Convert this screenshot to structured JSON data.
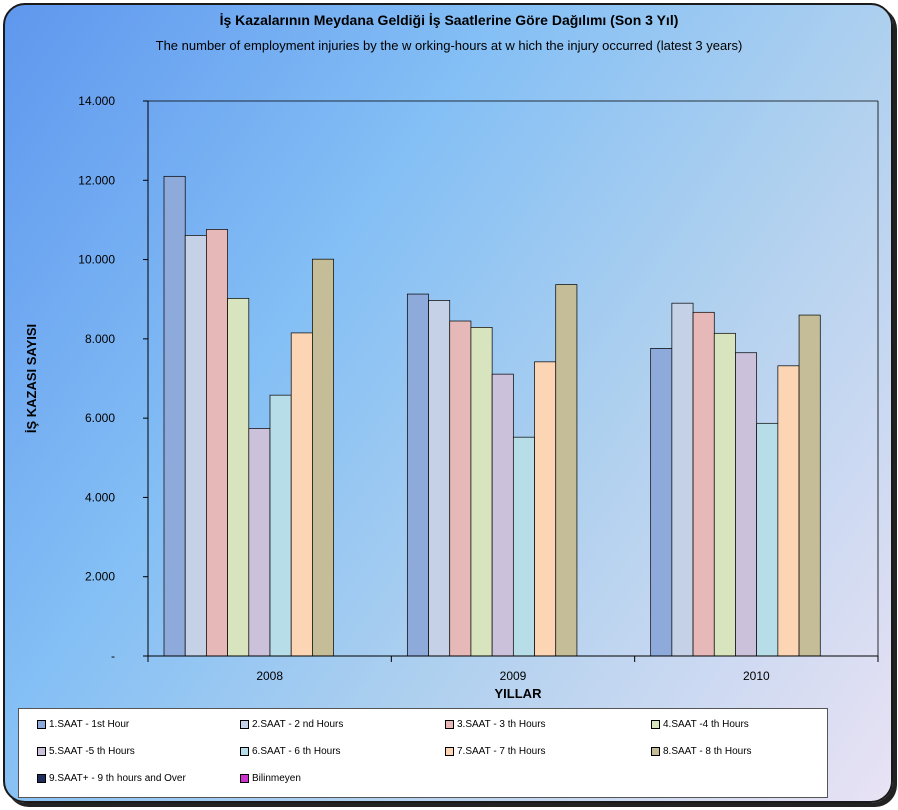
{
  "title": "İş Kazalarının Meydana Geldiği İş Saatlerine Göre Dağılımı (Son 3 Yıl)",
  "subtitle": "The number of employment injuries by the w orking-hours at w hich the injury occurred (latest 3 years)",
  "chart_data": {
    "type": "bar",
    "title": "İş Kazalarının Meydana Geldiği İş Saatlerine Göre Dağılımı (Son 3 Yıl)",
    "subtitle": "The number of employment injuries by the w orking-hours at w hich the injury occurred (latest 3 years)",
    "xlabel": "YILLAR",
    "ylabel": "İŞ KAZASI SAYISI",
    "ylim": [
      0,
      14000
    ],
    "yticks": [
      "-",
      "2.000",
      "4.000",
      "6.000",
      "8.000",
      "10.000",
      "12.000",
      "14.000"
    ],
    "categories": [
      "2008",
      "2009",
      "2010"
    ],
    "legend_position": "bottom",
    "series": [
      {
        "name": "1.SAAT - 1st Hour",
        "color": "#8eaadb",
        "values": [
          12100,
          9130,
          7760
        ]
      },
      {
        "name": "2.SAAT - 2 nd Hours",
        "color": "#c5d1e6",
        "values": [
          10610,
          8970,
          8900
        ]
      },
      {
        "name": "3.SAAT - 3 th Hours",
        "color": "#e6b9b8",
        "values": [
          10760,
          8450,
          8670
        ]
      },
      {
        "name": "4.SAAT -4 th  Hours",
        "color": "#d7e4bd",
        "values": [
          9020,
          8290,
          8140
        ]
      },
      {
        "name": "5.SAAT -5 th  Hours",
        "color": "#ccc1da",
        "values": [
          5740,
          7110,
          7650
        ]
      },
      {
        "name": "6.SAAT - 6 th  Hours",
        "color": "#b7dee8",
        "values": [
          6580,
          5520,
          5870
        ]
      },
      {
        "name": "7.SAAT - 7 th  Hours",
        "color": "#fcd5b5",
        "values": [
          8150,
          7420,
          7320
        ]
      },
      {
        "name": "8.SAAT - 8 th Hours",
        "color": "#c4bd97",
        "values": [
          10010,
          9370,
          8600
        ]
      },
      {
        "name": "9.SAAT+ - 9 th hours and Over",
        "color": "#1f2d5c",
        "values": [
          0,
          0,
          0
        ]
      },
      {
        "name": "Bilinmeyen",
        "color": "#cc33cc",
        "values": [
          0,
          0,
          0
        ]
      }
    ]
  }
}
